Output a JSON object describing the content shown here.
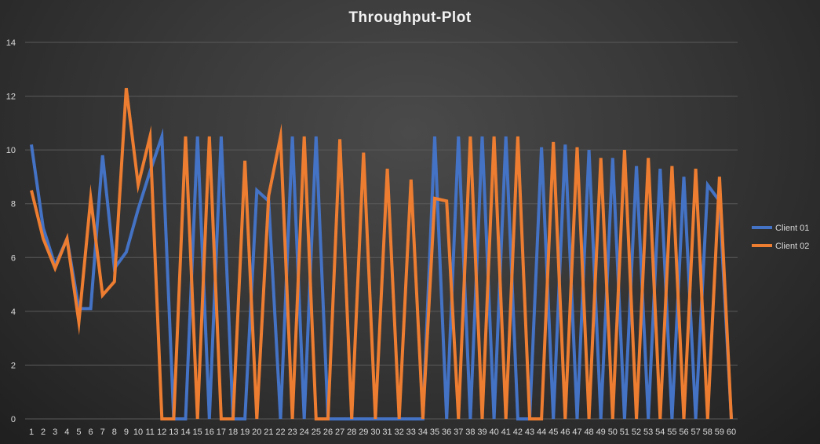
{
  "chart_data": {
    "type": "line",
    "title": "Throughput-Plot",
    "xlabel": "",
    "ylabel": "",
    "ylim": [
      0,
      14
    ],
    "yticks": [
      "0",
      "2",
      "4",
      "6",
      "8",
      "10",
      "12",
      "14"
    ],
    "x": [
      "1",
      "2",
      "3",
      "4",
      "5",
      "6",
      "7",
      "8",
      "9",
      "10",
      "11",
      "12",
      "13",
      "14",
      "15",
      "16",
      "17",
      "18",
      "19",
      "20",
      "21",
      "22",
      "23",
      "24",
      "25",
      "26",
      "27",
      "28",
      "29",
      "30",
      "31",
      "32",
      "33",
      "34",
      "35",
      "36",
      "37",
      "38",
      "39",
      "40",
      "41",
      "42",
      "43",
      "44",
      "45",
      "46",
      "47",
      "48",
      "49",
      "50",
      "51",
      "52",
      "53",
      "54",
      "55",
      "56",
      "57",
      "58",
      "59",
      "60"
    ],
    "grid": true,
    "legend_position": "right",
    "series": [
      {
        "name": "Client 01",
        "color": "#4472c4",
        "values": [
          10.2,
          7.1,
          5.7,
          6.7,
          4.1,
          4.1,
          9.8,
          5.6,
          6.2,
          7.8,
          9.2,
          10.5,
          0,
          0,
          10.5,
          0,
          10.5,
          0,
          0,
          8.5,
          8.1,
          0,
          10.5,
          0,
          10.5,
          0,
          0,
          0,
          0,
          0,
          0,
          0,
          0,
          0,
          10.5,
          0,
          10.5,
          0,
          10.5,
          0,
          10.5,
          0,
          0,
          10.1,
          0,
          10.2,
          0,
          10.0,
          0,
          9.7,
          0,
          9.4,
          0,
          9.3,
          0,
          9.0,
          0,
          8.7,
          8.1,
          0
        ]
      },
      {
        "name": "Client 02",
        "color": "#ed7d31",
        "values": [
          8.5,
          6.7,
          5.6,
          6.7,
          3.6,
          8.2,
          4.6,
          5.1,
          12.3,
          8.7,
          10.5,
          0,
          0,
          10.5,
          0,
          10.5,
          0,
          0,
          9.6,
          0,
          8.3,
          10.5,
          0,
          10.5,
          0,
          0,
          10.4,
          0,
          9.9,
          0,
          9.3,
          0,
          8.9,
          0,
          8.2,
          8.1,
          0,
          10.5,
          0,
          10.5,
          0,
          10.5,
          0,
          0,
          10.3,
          0,
          10.1,
          0,
          9.7,
          0,
          10.0,
          0,
          9.7,
          0,
          9.4,
          0,
          9.3,
          0,
          9.0,
          0
        ]
      }
    ]
  }
}
